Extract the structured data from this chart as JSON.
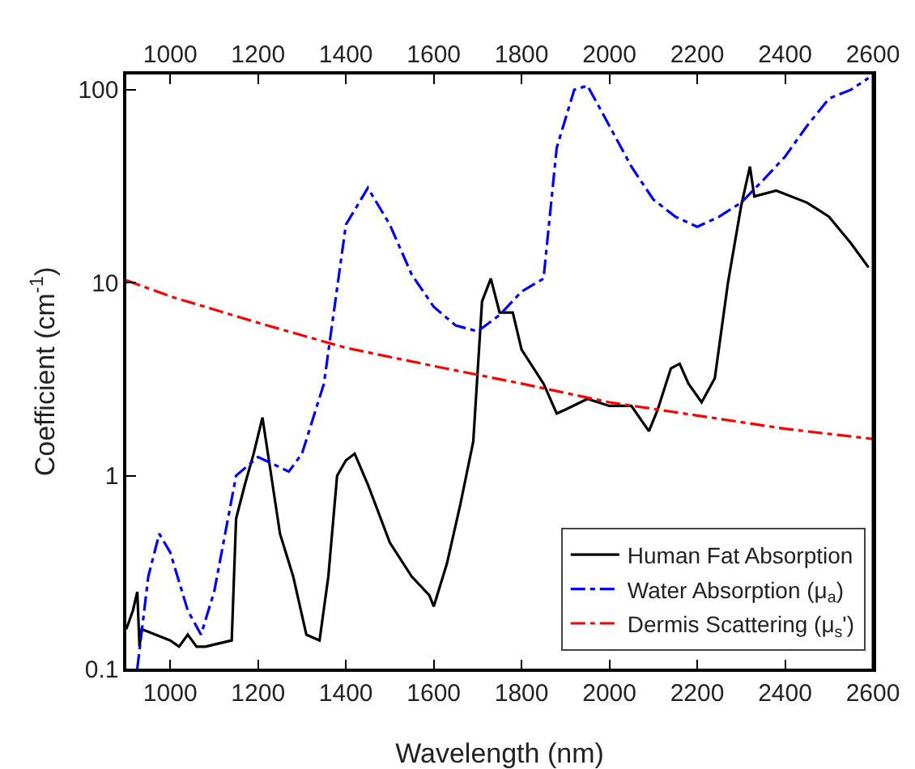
{
  "chart_data": {
    "type": "line",
    "xlabel": "Wavelength (nm)",
    "ylabel": "Coefficient (cm$^{-1}$)",
    "log": "y",
    "grid": false,
    "legend": "bottom right",
    "xlim": [
      900,
      2600
    ],
    "xticks": [
      1000,
      1200,
      1400,
      1600,
      1800,
      2000,
      2200,
      2400,
      2600
    ],
    "x2lim": [
      900,
      2600
    ],
    "x2ticks": [
      1000,
      1200,
      1400,
      1600,
      1800,
      2000,
      2200,
      2400,
      2600
    ],
    "ylim": [
      0.1,
      120
    ],
    "yticks": [
      0.1,
      1,
      10,
      100
    ],
    "series": [
      {
        "name": "Human Fat Absorption",
        "color": "#000000",
        "line_style": "solid",
        "x": [
          900,
          915,
          925,
          930,
          935,
          1000,
          1020,
          1040,
          1060,
          1080,
          1140,
          1150,
          1170,
          1190,
          1210,
          1230,
          1250,
          1280,
          1310,
          1340,
          1360,
          1380,
          1400,
          1420,
          1450,
          1500,
          1550,
          1590,
          1600,
          1630,
          1660,
          1690,
          1710,
          1730,
          1750,
          1780,
          1800,
          1850,
          1880,
          1900,
          1950,
          2000,
          2050,
          2090,
          2110,
          2140,
          2160,
          2180,
          2210,
          2240,
          2270,
          2300,
          2320,
          2330,
          2380,
          2450,
          2500,
          2550,
          2590
        ],
        "values": [
          0.16,
          0.2,
          0.25,
          0.13,
          0.16,
          0.14,
          0.13,
          0.15,
          0.13,
          0.13,
          0.14,
          0.6,
          0.9,
          1.3,
          2,
          1,
          0.5,
          0.3,
          0.15,
          0.14,
          0.3,
          1,
          1.2,
          1.3,
          0.9,
          0.45,
          0.3,
          0.24,
          0.21,
          0.35,
          0.7,
          1.5,
          8,
          10.5,
          7,
          7,
          4.5,
          3,
          2.1,
          2.2,
          2.5,
          2.3,
          2.3,
          1.7,
          2.2,
          3.6,
          3.8,
          3,
          2.4,
          3.2,
          10,
          25,
          40,
          28,
          30,
          26,
          22,
          16,
          12
        ]
      },
      {
        "name": "Water Absorption (μ$_{a}$)",
        "color": "#0000ff",
        "line_style": "dashdot",
        "x": [
          925,
          950,
          975,
          1000,
          1040,
          1070,
          1100,
          1150,
          1200,
          1270,
          1300,
          1350,
          1400,
          1450,
          1500,
          1550,
          1600,
          1650,
          1700,
          1750,
          1800,
          1850,
          1880,
          1920,
          1950,
          2000,
          2050,
          2100,
          2150,
          2200,
          2250,
          2300,
          2350,
          2400,
          2450,
          2500,
          2550,
          2590
        ],
        "values": [
          0.1,
          0.3,
          0.5,
          0.4,
          0.2,
          0.15,
          0.25,
          1,
          1.25,
          1.05,
          1.3,
          3,
          20,
          31,
          20,
          11,
          7.5,
          6,
          5.6,
          6.8,
          9,
          10.5,
          50,
          100,
          105,
          65,
          40,
          27,
          22,
          19.5,
          22,
          26,
          34,
          45,
          65,
          90,
          100,
          115
        ]
      },
      {
        "name": "Dermis Scattering (μ$_{s}$')",
        "color": "#ff0000",
        "line_style": "dashdot",
        "x": [
          900,
          1000,
          1200,
          1400,
          1600,
          1800,
          2000,
          2200,
          2400,
          2600
        ],
        "values": [
          10.3,
          8.5,
          6.2,
          4.6,
          3.7,
          3,
          2.4,
          2.05,
          1.75,
          1.55
        ]
      }
    ]
  }
}
